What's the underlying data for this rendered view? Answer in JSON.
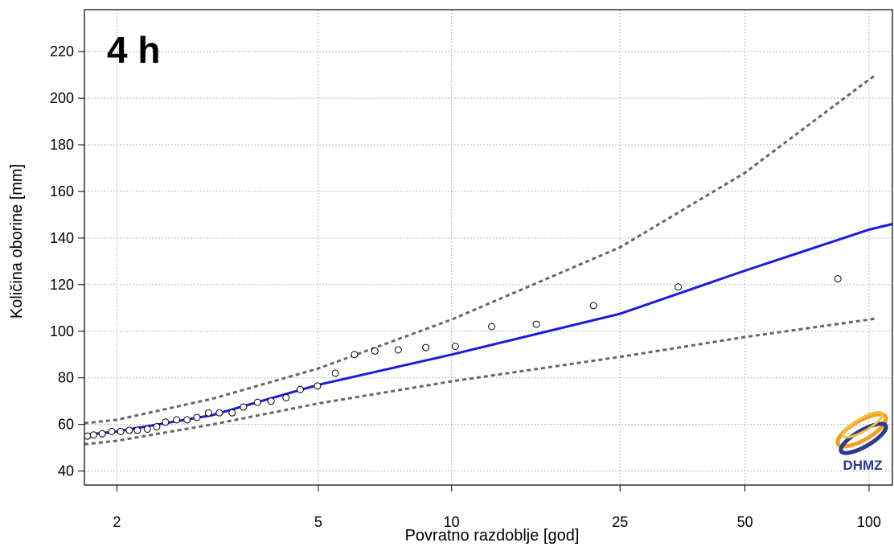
{
  "chart_data": {
    "type": "scatter",
    "annotation": "4 h",
    "x_label": "Povratno razdoblje [god]",
    "y_label": "Količina oborine [mm]",
    "logo": "DHMZ",
    "xscale": "gumbel",
    "xlim": [
      1.77,
      114
    ],
    "xticks": [
      2,
      5,
      10,
      25,
      50,
      100
    ],
    "ylim": [
      34,
      238
    ],
    "yticks": [
      40,
      60,
      80,
      100,
      120,
      140,
      160,
      180,
      200,
      220
    ],
    "grid": true,
    "series": [
      {
        "kind": "points",
        "color": "#000000",
        "x": [
          1.79,
          1.83,
          1.89,
          1.96,
          2.03,
          2.1,
          2.17,
          2.26,
          2.35,
          2.44,
          2.56,
          2.68,
          2.8,
          2.95,
          3.1,
          3.29,
          3.47,
          3.71,
          3.96,
          4.26,
          4.57,
          4.98,
          5.45,
          6.01,
          6.68,
          7.54,
          8.72,
          10.2,
          12.4,
          15.8,
          21.6,
          34.5,
          84.0
        ],
        "values": [
          55,
          55.5,
          56,
          57,
          57,
          57.5,
          57.5,
          58,
          59,
          61,
          62,
          62,
          63,
          65,
          65,
          65,
          67.5,
          69.5,
          70,
          71.5,
          75,
          76.5,
          82,
          90,
          91.5,
          92,
          93,
          93.5,
          102,
          103,
          111,
          119,
          122.5
        ]
      },
      {
        "kind": "line",
        "color": "#1a1ae0",
        "dash": false,
        "x": [
          1.77,
          2,
          3,
          5,
          10,
          25,
          50,
          100,
          114
        ],
        "values": [
          55.5,
          57,
          64,
          77,
          90,
          107.5,
          126,
          143.6,
          146
        ]
      },
      {
        "kind": "line",
        "color": "#666666",
        "dash": true,
        "x": [
          1.77,
          2,
          3,
          5,
          10,
          25,
          50,
          100,
          104
        ],
        "values": [
          60.5,
          62,
          71,
          84,
          105,
          136,
          168,
          208,
          210
        ]
      },
      {
        "kind": "line",
        "color": "#666666",
        "dash": true,
        "x": [
          1.77,
          2,
          3,
          5,
          10,
          25,
          50,
          100,
          104
        ],
        "values": [
          51.5,
          53,
          60,
          69,
          78.5,
          89,
          97.5,
          105,
          105.5
        ]
      }
    ]
  }
}
